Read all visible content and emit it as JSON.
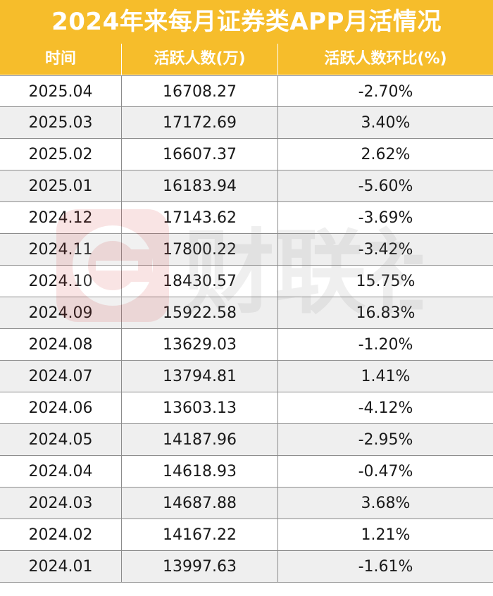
{
  "title": "2024年来每月证券类APP月活情况",
  "columns": [
    "时间",
    "活跃人数(万)",
    "活跃人数环比(%)"
  ],
  "rows": [
    {
      "month": "2025.04",
      "active": "16708.27",
      "mom": "-2.70%"
    },
    {
      "month": "2025.03",
      "active": "17172.69",
      "mom": "3.40%"
    },
    {
      "month": "2025.02",
      "active": "16607.37",
      "mom": "2.62%"
    },
    {
      "month": "2025.01",
      "active": "16183.94",
      "mom": "-5.60%"
    },
    {
      "month": "2024.12",
      "active": "17143.62",
      "mom": "-3.69%"
    },
    {
      "month": "2024.11",
      "active": "17800.22",
      "mom": "-3.42%"
    },
    {
      "month": "2024.10",
      "active": "18430.57",
      "mom": "15.75%"
    },
    {
      "month": "2024.09",
      "active": "15922.58",
      "mom": "16.83%"
    },
    {
      "month": "2024.08",
      "active": "13629.03",
      "mom": "-1.20%"
    },
    {
      "month": "2024.07",
      "active": "13794.81",
      "mom": "1.41%"
    },
    {
      "month": "2024.06",
      "active": "13603.13",
      "mom": "-4.12%"
    },
    {
      "month": "2024.05",
      "active": "14187.96",
      "mom": "-2.95%"
    },
    {
      "month": "2024.04",
      "active": "14618.93",
      "mom": "-0.47%"
    },
    {
      "month": "2024.03",
      "active": "14687.88",
      "mom": "3.68%"
    },
    {
      "month": "2024.02",
      "active": "14167.22",
      "mom": "1.21%"
    },
    {
      "month": "2024.01",
      "active": "13997.63",
      "mom": "-1.61%"
    }
  ],
  "watermark": {
    "text": "财联社",
    "icon": "cls-logo-icon"
  },
  "colors": {
    "header_bg": "#f6bd2b",
    "header_text": "#ffffff",
    "alt_row_bg": "#efefef",
    "grid": "#8c8c8c"
  }
}
